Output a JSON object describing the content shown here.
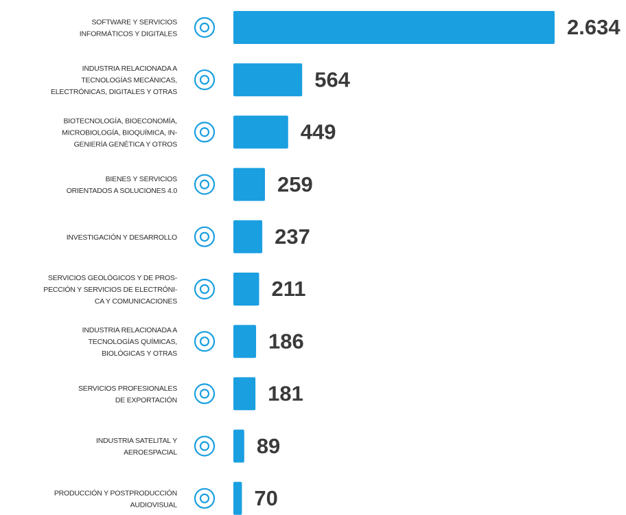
{
  "chart_data": {
    "type": "hbar",
    "categories": [
      "SOFTWARE Y SERVICIOS\nINFORMÁTICOS Y DIGITALES",
      "INDUSTRIA RELACIONADA A\nTECNOLOGÍAS MECÁNICAS,\nELECTRÓNICAS, DIGITALES Y OTRAS",
      "BIOTECNOLOGÍA, BIOECONOMÍA,\nMICROBIOLOGÍA, BIOQUÍMICA, IN-\nGENIERÍA GENÉTICA Y OTROS",
      "BIENES Y SERVICIOS\nORIENTADOS A SOLUCIONES 4.0",
      "INVESTIGACIÓN Y DESARROLLO",
      "SERVICIOS GEOLÓGICOS Y DE PROS-\nPECCIÓN Y SERVICIOS DE ELECTRÓNI-\nCA Y  COMUNICACIONES",
      "INDUSTRIA RELACIONADA A\nTECNOLOGÍAS QUÍMICAS,\nBIOLÓGICAS Y OTRAS",
      "SERVICIOS PROFESIONALES\nDE EXPORTACIÓN",
      "INDUSTRIA SATELITAL Y\nAEROESPACIAL",
      "PRODUCCIÓN Y POSTPRODUCCIÓN\nAUDIOVISUAL"
    ],
    "values": [
      2634,
      564,
      449,
      259,
      237,
      211,
      186,
      181,
      89,
      70
    ],
    "value_labels": [
      "2.634",
      "564",
      "449",
      "259",
      "237",
      "211",
      "186",
      "181",
      "89",
      "70"
    ],
    "color": "#1a9fe0"
  }
}
